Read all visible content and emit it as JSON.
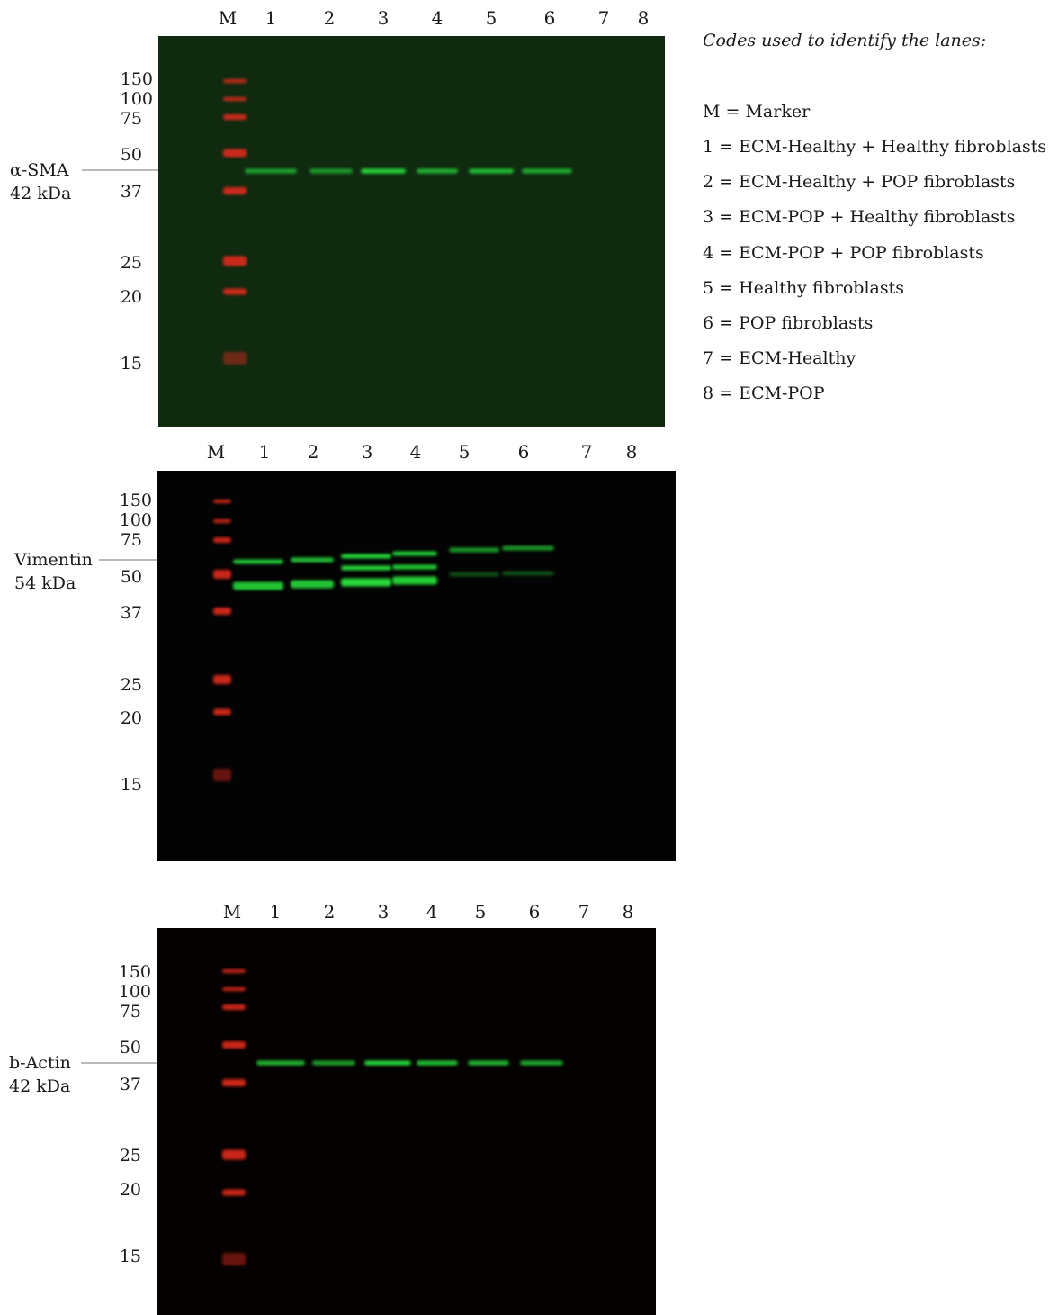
{
  "legend": {
    "title": "Codes used to identify the lanes:",
    "items": [
      "M = Marker",
      "1 = ECM-Healthy + Healthy fibroblasts",
      "2 = ECM-Healthy + POP fibroblasts",
      "3 = ECM-POP + Healthy fibroblasts",
      "4 = ECM-POP + POP fibroblasts",
      "5 = Healthy fibroblasts",
      "6 = POP fibroblasts",
      "7 = ECM-Healthy",
      "8 = ECM-POP"
    ]
  },
  "lane_labels": [
    "M",
    "1",
    "2",
    "3",
    "4",
    "5",
    "6",
    "7",
    "8"
  ],
  "panels": [
    {
      "name": "alpha-sma",
      "target_line1": "α-SMA",
      "target_line2": "42 kDa",
      "mw_labels": [
        "150",
        "100",
        "75",
        "50",
        "37",
        "25",
        "20",
        "15"
      ],
      "background": "#102a10",
      "band_intensity": [
        0.0,
        0.7,
        0.65,
        1.0,
        0.8,
        0.85,
        0.75,
        0.0,
        0.0
      ]
    },
    {
      "name": "vimentin",
      "target_line1": "Vimentin",
      "target_line2": "54 kDa",
      "mw_labels": [
        "150",
        "100",
        "75",
        "50",
        "37",
        "25",
        "20",
        "15"
      ],
      "background": "#030303",
      "band_intensity": [
        0.0,
        0.9,
        0.9,
        1.0,
        0.95,
        0.7,
        0.7,
        0.0,
        0.0
      ]
    },
    {
      "name": "b-actin",
      "target_line1": "b-Actin",
      "target_line2": "42 kDa",
      "mw_labels": [
        "150",
        "100",
        "75",
        "50",
        "37",
        "25",
        "20",
        "15"
      ],
      "background": "#050101",
      "band_intensity": [
        0.0,
        0.85,
        0.75,
        1.0,
        0.9,
        0.85,
        0.8,
        0.0,
        0.0
      ]
    }
  ],
  "colors": {
    "marker": "#e0291a",
    "band": "#27d93a",
    "arrow": "#b9b9b9"
  }
}
